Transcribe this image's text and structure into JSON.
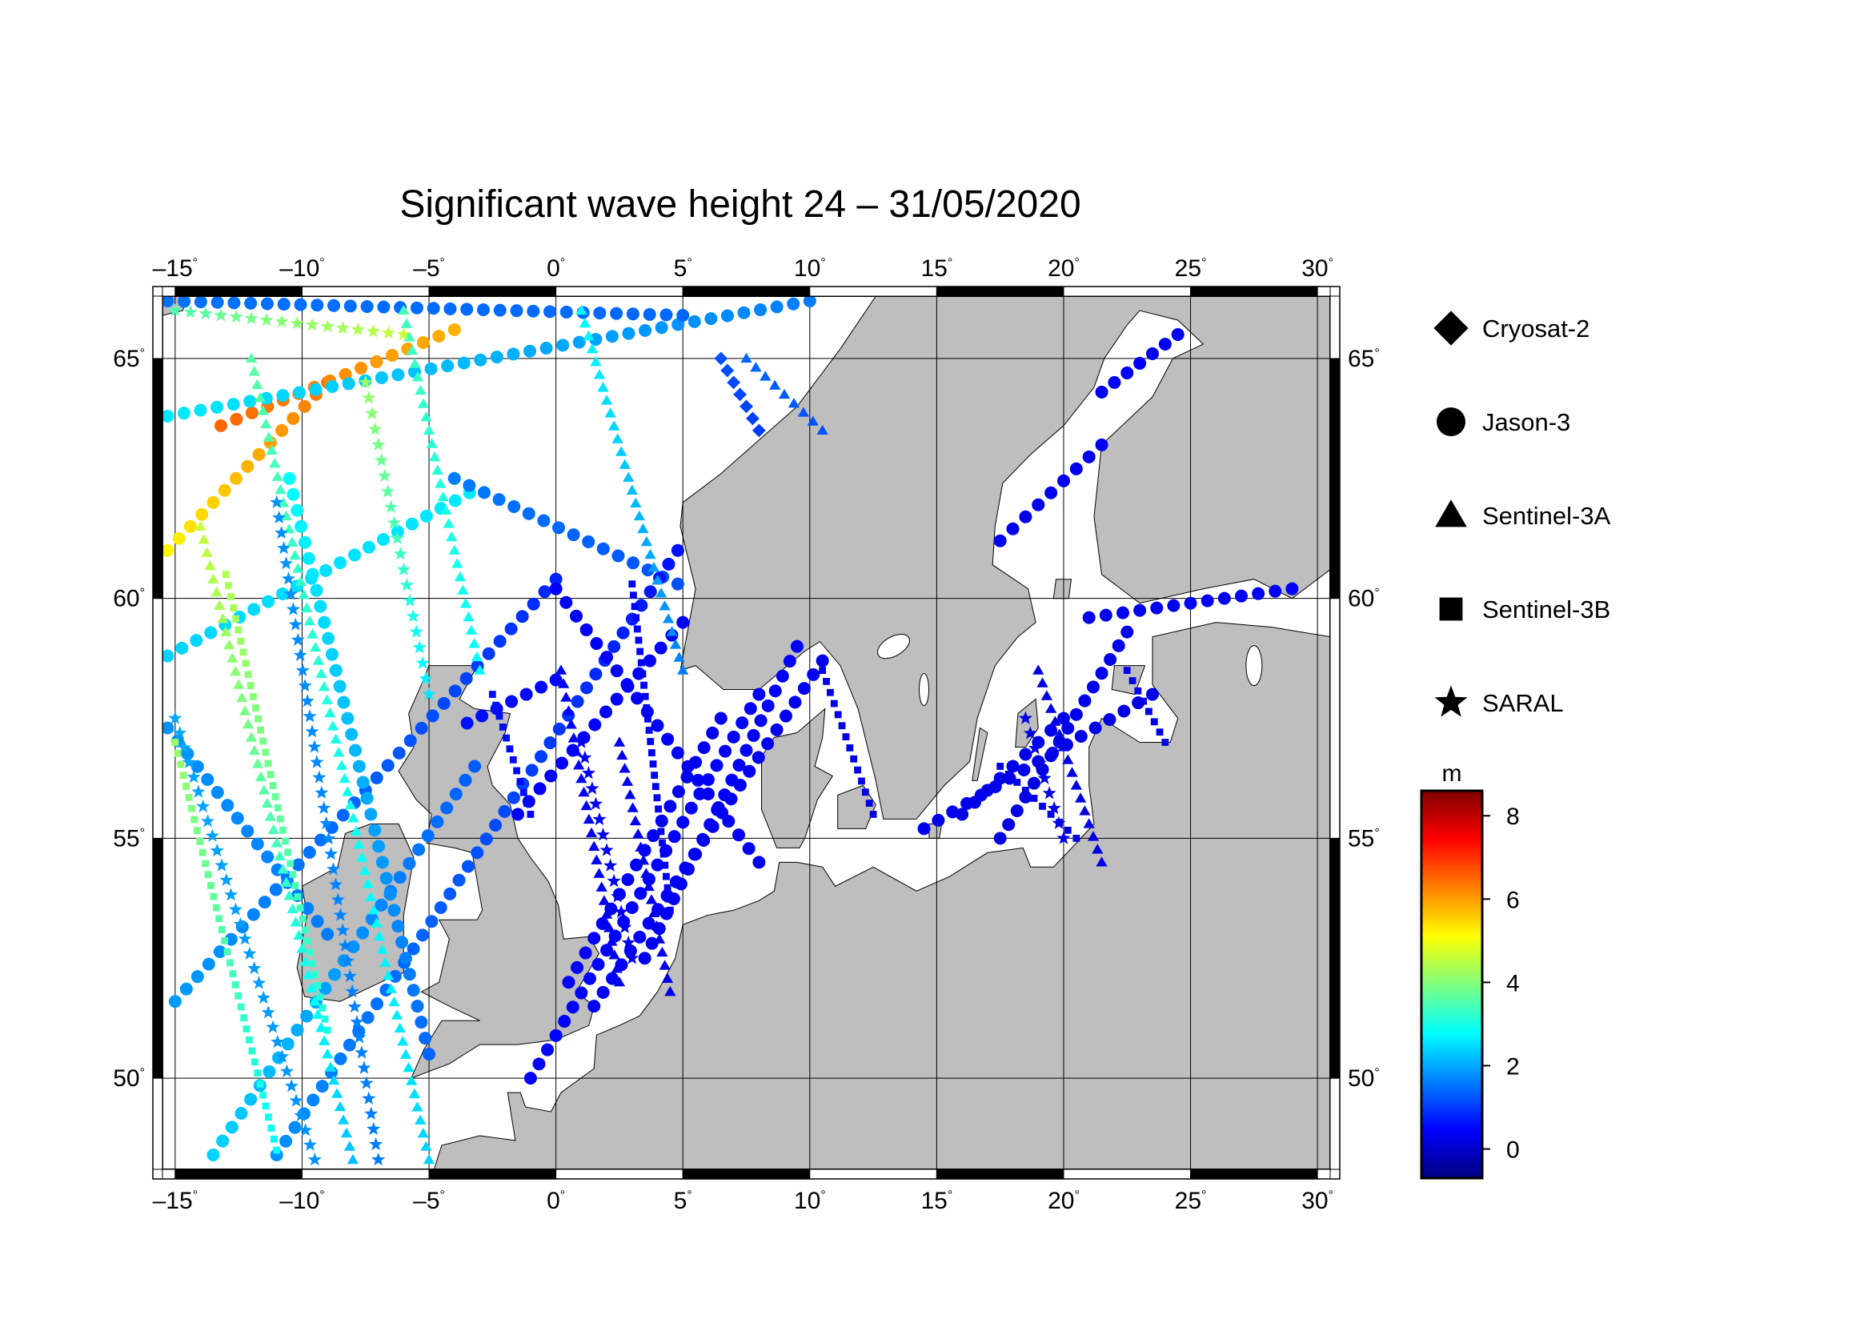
{
  "title": "Significant wave height 24 – 31/05/2020",
  "map": {
    "lon_range": [
      -15.5,
      30.5
    ],
    "lat_range": [
      48.1,
      66.3
    ],
    "lon_ticks": [
      {
        "value": -15,
        "label": "–15"
      },
      {
        "value": -10,
        "label": "–10"
      },
      {
        "value": -5,
        "label": "–5"
      },
      {
        "value": 0,
        "label": "0"
      },
      {
        "value": 5,
        "label": "5"
      },
      {
        "value": 10,
        "label": "10"
      },
      {
        "value": 15,
        "label": "15"
      },
      {
        "value": 20,
        "label": "20"
      },
      {
        "value": 25,
        "label": "25"
      },
      {
        "value": 30,
        "label": "30"
      }
    ],
    "lat_ticks": [
      {
        "value": 50,
        "label": "50"
      },
      {
        "value": 55,
        "label": "55"
      },
      {
        "value": 60,
        "label": "60"
      },
      {
        "value": 65,
        "label": "65"
      }
    ],
    "degree_symbol": "°",
    "colors": {
      "land": "#bebebe",
      "sea": "#ffffff",
      "grid": "#000000"
    }
  },
  "legend": [
    {
      "name": "Cryosat-2",
      "marker": "diamond"
    },
    {
      "name": "Jason-3",
      "marker": "circle"
    },
    {
      "name": "Sentinel-3A",
      "marker": "triangle"
    },
    {
      "name": "Sentinel-3B",
      "marker": "square"
    },
    {
      "name": "SARAL",
      "marker": "star"
    }
  ],
  "colorbar": {
    "unit": "m",
    "range": [
      -0.7,
      8.6
    ],
    "ticks": [
      {
        "value": 0,
        "label": "0"
      },
      {
        "value": 2,
        "label": "2"
      },
      {
        "value": 4,
        "label": "4"
      },
      {
        "value": 6,
        "label": "6"
      },
      {
        "value": 8,
        "label": "8"
      }
    ],
    "stops": [
      "#00007f",
      "#0000ff",
      "#007fff",
      "#00ffff",
      "#7fff7f",
      "#ffff00",
      "#ff7f00",
      "#ff0000",
      "#7f0000"
    ]
  },
  "chart_data": {
    "type": "scatter",
    "title": "Significant wave height 24 – 31/05/2020",
    "xlabel": "",
    "ylabel": "",
    "xlim": [
      -15.5,
      30.5
    ],
    "ylim": [
      48.1,
      66.3
    ],
    "value_unit": "m",
    "series": [
      {
        "name": "Jason-3",
        "marker": "circle",
        "tracks": [
          {
            "from": [
              -15.3,
              58.8
            ],
            "to": [
              -3.4,
              62.2
            ],
            "values": [
              2.4,
              2.6
            ]
          },
          {
            "from": [
              -15.3,
              61.0
            ],
            "to": [
              -9.0,
              64.5
            ],
            "values": [
              5.2,
              6.4
            ]
          },
          {
            "from": [
              -13.2,
              63.6
            ],
            "to": [
              -4.0,
              65.6
            ],
            "values": [
              6.5,
              5.8
            ]
          },
          {
            "from": [
              -15.3,
              63.8
            ],
            "to": [
              10.0,
              66.2
            ],
            "values": [
              2.6,
              1.6
            ]
          },
          {
            "from": [
              -15.3,
              66.2
            ],
            "to": [
              5.0,
              65.9
            ],
            "values": [
              1.5,
              1.4
            ]
          },
          {
            "from": [
              -4.0,
              62.5
            ],
            "to": [
              4.8,
              60.3
            ],
            "values": [
              1.6,
              1.2
            ]
          },
          {
            "from": [
              -15.0,
              51.6
            ],
            "to": [
              0.0,
              60.4
            ],
            "values": [
              1.9,
              0.8
            ]
          },
          {
            "from": [
              -11.0,
              48.4
            ],
            "to": [
              4.8,
              61.0
            ],
            "values": [
              1.8,
              0.6
            ]
          },
          {
            "from": [
              -13.5,
              48.4
            ],
            "to": [
              -3.2,
              56.5
            ],
            "values": [
              2.4,
              1.3
            ]
          },
          {
            "from": [
              -15.3,
              57.3
            ],
            "to": [
              -9.0,
              53.0
            ],
            "values": [
              1.8,
              1.6
            ]
          },
          {
            "from": [
              -10.5,
              62.5
            ],
            "to": [
              -5.0,
              50.5
            ],
            "values": [
              2.8,
              1.4
            ]
          },
          {
            "from": [
              -3.5,
              57.4
            ],
            "to": [
              0.0,
              58.3
            ],
            "values": [
              0.6,
              0.5
            ]
          },
          {
            "from": [
              0.0,
              60.2
            ],
            "to": [
              8.0,
              54.5
            ],
            "values": [
              0.4,
              0.3
            ]
          },
          {
            "from": [
              -1.0,
              50.0
            ],
            "to": [
              8.0,
              58.0
            ],
            "values": [
              0.5,
              0.4
            ]
          },
          {
            "from": [
              1.5,
              51.5
            ],
            "to": [
              10.5,
              58.7
            ],
            "values": [
              0.4,
              0.3
            ]
          },
          {
            "from": [
              -1.5,
              55.5
            ],
            "to": [
              5.0,
              59.5
            ],
            "values": [
              0.4,
              0.4
            ]
          },
          {
            "from": [
              3.5,
              52.5
            ],
            "to": [
              9.5,
              59.0
            ],
            "values": [
              0.3,
              0.4
            ]
          },
          {
            "from": [
              0.5,
              52.0
            ],
            "to": [
              6.5,
              57.5
            ],
            "values": [
              0.4,
              0.3
            ]
          },
          {
            "from": [
              16.0,
              55.5
            ],
            "to": [
              20.0,
              57.5
            ],
            "values": [
              0.2,
              0.3
            ]
          },
          {
            "from": [
              17.5,
              55.0
            ],
            "to": [
              22.5,
              59.3
            ],
            "values": [
              0.2,
              0.3
            ]
          },
          {
            "from": [
              14.5,
              55.2
            ],
            "to": [
              23.5,
              58.0
            ],
            "values": [
              0.3,
              0.2
            ]
          },
          {
            "from": [
              21.0,
              59.6
            ],
            "to": [
              29.0,
              60.2
            ],
            "values": [
              0.3,
              0.4
            ]
          },
          {
            "from": [
              17.5,
              61.2
            ],
            "to": [
              21.5,
              63.2
            ],
            "values": [
              0.3,
              0.3
            ]
          },
          {
            "from": [
              21.5,
              64.3
            ],
            "to": [
              24.5,
              65.5
            ],
            "values": [
              0.4,
              0.3
            ]
          }
        ]
      },
      {
        "name": "Sentinel-3A",
        "marker": "triangle",
        "tracks": [
          {
            "from": [
              -14.0,
              61.5
            ],
            "to": [
              -8.0,
              48.3
            ],
            "values": [
              4.6,
              2.2
            ]
          },
          {
            "from": [
              -12.0,
              65.0
            ],
            "to": [
              -5.0,
              48.3
            ],
            "values": [
              3.6,
              2.4
            ]
          },
          {
            "from": [
              -6.0,
              66.0
            ],
            "to": [
              -3.0,
              58.5
            ],
            "values": [
              3.4,
              2.8
            ]
          },
          {
            "from": [
              1.0,
              66.0
            ],
            "to": [
              5.0,
              58.5
            ],
            "values": [
              2.8,
              1.6
            ]
          },
          {
            "from": [
              0.2,
              58.5
            ],
            "to": [
              2.5,
              52.0
            ],
            "values": [
              0.4,
              0.3
            ]
          },
          {
            "from": [
              2.5,
              57.0
            ],
            "to": [
              4.5,
              51.8
            ],
            "values": [
              0.3,
              0.3
            ]
          },
          {
            "from": [
              19.0,
              58.5
            ],
            "to": [
              21.5,
              54.5
            ],
            "values": [
              0.2,
              0.2
            ]
          },
          {
            "from": [
              7.5,
              65.0
            ],
            "to": [
              10.5,
              63.5
            ],
            "values": [
              1.4,
              1.2
            ]
          }
        ]
      },
      {
        "name": "Sentinel-3B",
        "marker": "square",
        "tracks": [
          {
            "from": [
              -15.0,
              57.0
            ],
            "to": [
              -11.0,
              48.5
            ],
            "values": [
              4.2,
              2.8
            ]
          },
          {
            "from": [
              -13.0,
              60.5
            ],
            "to": [
              -9.0,
              51.0
            ],
            "values": [
              4.4,
              3.0
            ]
          },
          {
            "from": [
              -2.5,
              58.0
            ],
            "to": [
              -1.0,
              55.5
            ],
            "values": [
              0.6,
              0.5
            ]
          },
          {
            "from": [
              3.0,
              60.3
            ],
            "to": [
              4.5,
              53.5
            ],
            "values": [
              0.4,
              0.3
            ]
          },
          {
            "from": [
              10.5,
              58.5
            ],
            "to": [
              12.5,
              55.5
            ],
            "values": [
              0.2,
              0.2
            ]
          },
          {
            "from": [
              17.5,
              56.5
            ],
            "to": [
              20.5,
              55.0
            ],
            "values": [
              0.2,
              0.2
            ]
          },
          {
            "from": [
              22.5,
              58.5
            ],
            "to": [
              24.0,
              57.0
            ],
            "values": [
              0.3,
              0.2
            ]
          }
        ]
      },
      {
        "name": "SARAL",
        "marker": "star",
        "tracks": [
          {
            "from": [
              -15.0,
              57.5
            ],
            "to": [
              -9.5,
              48.3
            ],
            "values": [
              2.0,
              1.8
            ]
          },
          {
            "from": [
              -11.0,
              62.0
            ],
            "to": [
              -7.0,
              48.3
            ],
            "values": [
              1.8,
              1.6
            ]
          },
          {
            "from": [
              -7.5,
              64.5
            ],
            "to": [
              -5.0,
              58.0
            ],
            "values": [
              4.2,
              2.6
            ]
          },
          {
            "from": [
              1.0,
              57.0
            ],
            "to": [
              3.0,
              52.5
            ],
            "values": [
              0.4,
              0.3
            ]
          },
          {
            "from": [
              18.5,
              57.5
            ],
            "to": [
              20.0,
              55.0
            ],
            "values": [
              0.2,
              0.2
            ]
          },
          {
            "from": [
              -15.0,
              66.0
            ],
            "to": [
              -6.0,
              65.5
            ],
            "values": [
              3.5,
              4.6
            ]
          }
        ]
      },
      {
        "name": "Cryosat-2",
        "marker": "diamond",
        "tracks": [
          {
            "from": [
              6.5,
              65.0
            ],
            "to": [
              8.0,
              63.5
            ],
            "values": [
              1.2,
              1.0
            ]
          }
        ]
      }
    ]
  }
}
